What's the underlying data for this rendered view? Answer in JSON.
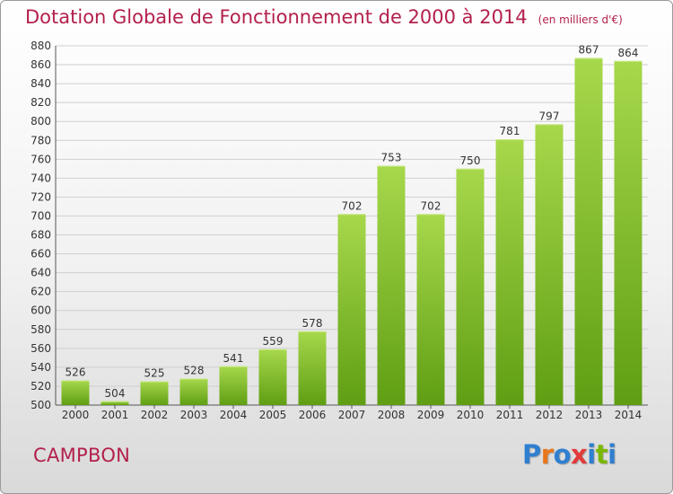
{
  "header": {
    "title": "Dotation Globale de Fonctionnement de 2000 à 2014",
    "unit": "(en milliers d'€)"
  },
  "commune": "CAMPBON",
  "logo": {
    "text": "Proxiti",
    "letter_colors": [
      "#2f7fd0",
      "#e8761c",
      "#2f7fd0",
      "#e23a3a",
      "#2f7fd0",
      "#7ab800",
      "#2f7fd0"
    ]
  },
  "colors": {
    "bar_light": "#a7d84c",
    "bar_dark": "#5f9e13",
    "grid": "#cfcfcf",
    "accent": "#b3204b"
  },
  "chart_data": {
    "type": "bar",
    "title": "Dotation Globale de Fonctionnement de 2000 à 2014",
    "subtitle": "(en milliers d'€)",
    "categories": [
      "2000",
      "2001",
      "2002",
      "2003",
      "2004",
      "2005",
      "2006",
      "2007",
      "2008",
      "2009",
      "2010",
      "2011",
      "2012",
      "2013",
      "2014"
    ],
    "values": [
      526,
      504,
      525,
      528,
      541,
      559,
      578,
      702,
      753,
      702,
      750,
      781,
      797,
      867,
      864
    ],
    "ylim": [
      500,
      880
    ],
    "yticks": [
      500,
      520,
      540,
      560,
      580,
      600,
      620,
      640,
      660,
      680,
      700,
      720,
      740,
      760,
      780,
      800,
      820,
      840,
      860,
      880
    ],
    "xlabel": "",
    "ylabel": "",
    "grid": true
  }
}
